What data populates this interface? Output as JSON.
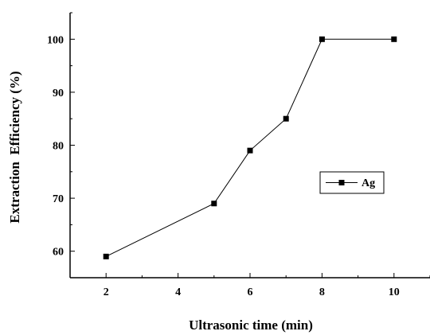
{
  "chart_data": {
    "type": "line",
    "title": "",
    "xlabel": "Ultrasonic time (min)",
    "ylabel": "Extraction  Efficiency (%)",
    "xlim": [
      1,
      11
    ],
    "ylim": [
      55,
      105
    ],
    "x_ticks": [
      2,
      4,
      6,
      8,
      10
    ],
    "y_ticks": [
      60,
      70,
      80,
      90,
      100
    ],
    "grid": false,
    "legend_position": "right",
    "series": [
      {
        "name": "Ag",
        "color": "#000000",
        "marker": "square",
        "x": [
          2,
          5,
          6,
          7,
          8,
          10
        ],
        "y": [
          59,
          69,
          79,
          85,
          100,
          100
        ]
      }
    ]
  }
}
